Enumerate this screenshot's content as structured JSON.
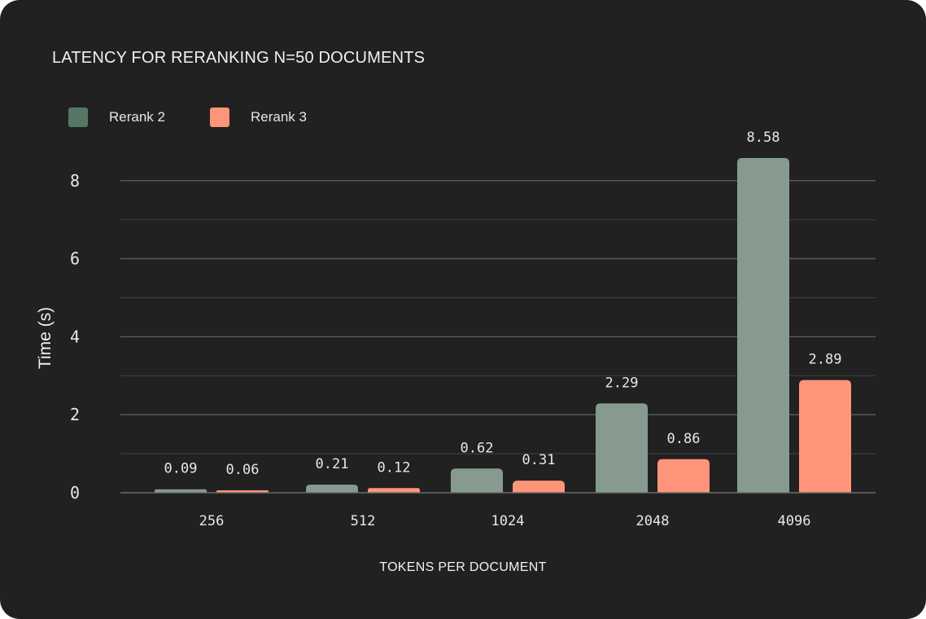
{
  "chart_data": {
    "type": "bar",
    "title": "LATENCY FOR RERANKING N=50 DOCUMENTS",
    "xlabel": "TOKENS PER DOCUMENT",
    "ylabel": "Time (s)",
    "categories": [
      "256",
      "512",
      "1024",
      "2048",
      "4096"
    ],
    "series": [
      {
        "name": "Rerank 2",
        "color": "#869a90",
        "legend_color": "#577766",
        "values": [
          0.09,
          0.21,
          0.62,
          2.29,
          8.58
        ]
      },
      {
        "name": "Rerank 3",
        "color": "#fe957a",
        "legend_color": "#fe957a",
        "values": [
          0.06,
          0.12,
          0.31,
          0.86,
          2.89
        ]
      }
    ],
    "value_labels": [
      [
        "0.09",
        "0.21",
        "0.62",
        "2.29",
        "8.58"
      ],
      [
        "0.06",
        "0.12",
        "0.31",
        "0.86",
        "2.89"
      ]
    ],
    "ylim": [
      0,
      8.8
    ],
    "yticks": [
      0,
      2,
      4,
      6,
      8
    ],
    "ytick_labels": [
      "0",
      "2",
      "4",
      "6",
      "8"
    ],
    "minor_gridlines": [
      1,
      3,
      5,
      7
    ],
    "grid": true,
    "legend_position": "top-left",
    "background": "#212121"
  }
}
